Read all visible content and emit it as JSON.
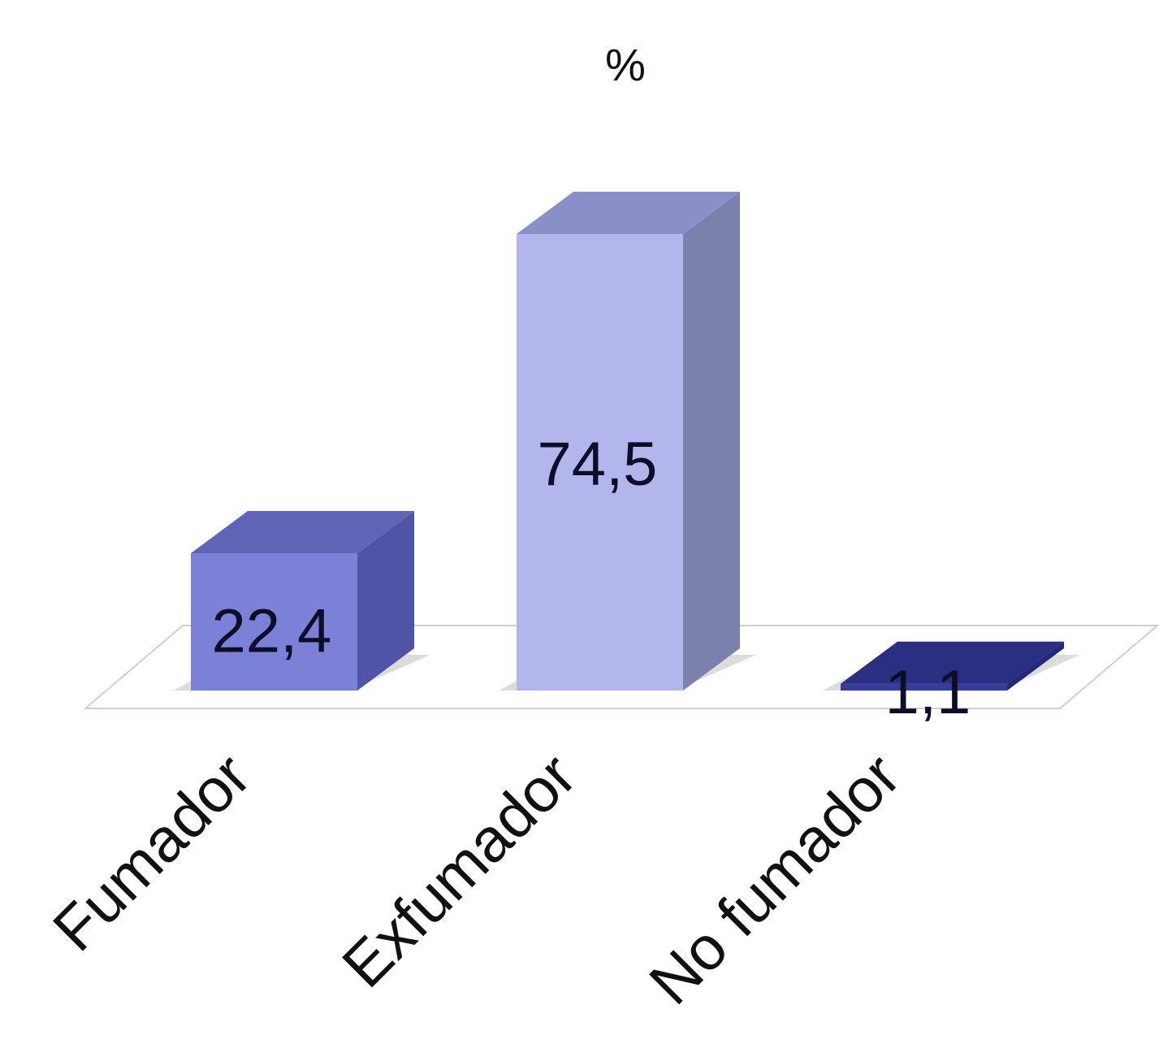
{
  "chart_data": {
    "type": "bar",
    "style": "3d",
    "title": "%",
    "xlabel": "",
    "ylabel": "",
    "categories": [
      "Fumador",
      "Exfumador",
      "No fumador"
    ],
    "values": [
      22.4,
      74.5,
      1.1
    ],
    "value_labels": [
      "22,4",
      "74,5",
      "1,1"
    ],
    "ylim": [
      0,
      100
    ],
    "grid": false,
    "legend": "none",
    "colors": {
      "front": [
        "#7b81d6",
        "#b2b6ec",
        "#363c98"
      ],
      "top": [
        "#5f64b7",
        "#8b8fc8",
        "#2a2f82"
      ],
      "side": [
        "#4f54a6",
        "#7c80ad",
        "#242a78"
      ],
      "floor_line": "#cfcfcf",
      "shadow": "#9a9a9a",
      "label": "#0d0d2a"
    }
  }
}
